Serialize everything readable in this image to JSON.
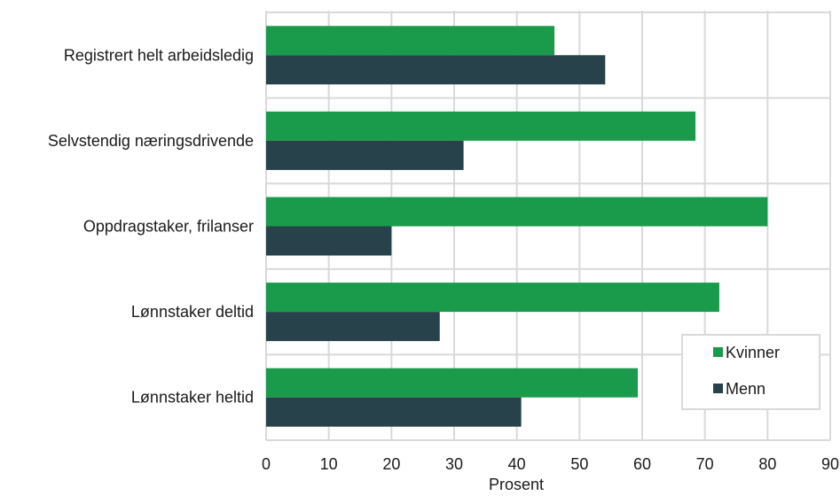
{
  "chart_data": {
    "type": "bar",
    "orientation": "horizontal",
    "categories": [
      "Registrert helt arbeidsledig",
      "Selvstendig næringsdrivende",
      "Oppdragstaker, frilanser",
      "Lønnstaker deltid",
      "Lønnstaker heltid"
    ],
    "series": [
      {
        "name": "Kvinner",
        "color": "#1a9b4b",
        "values": [
          46,
          68.5,
          80,
          72.3,
          59.3
        ]
      },
      {
        "name": "Menn",
        "color": "#27424a",
        "values": [
          54.1,
          31.5,
          20,
          27.7,
          40.7
        ]
      }
    ],
    "xlabel": "Prosent",
    "ylabel": "",
    "xlim": [
      0,
      90
    ],
    "xticks": [
      "0",
      "10",
      "20",
      "30",
      "40",
      "50",
      "60",
      "70",
      "80",
      "90"
    ],
    "grid": true,
    "legend_position": "bottom-right"
  }
}
